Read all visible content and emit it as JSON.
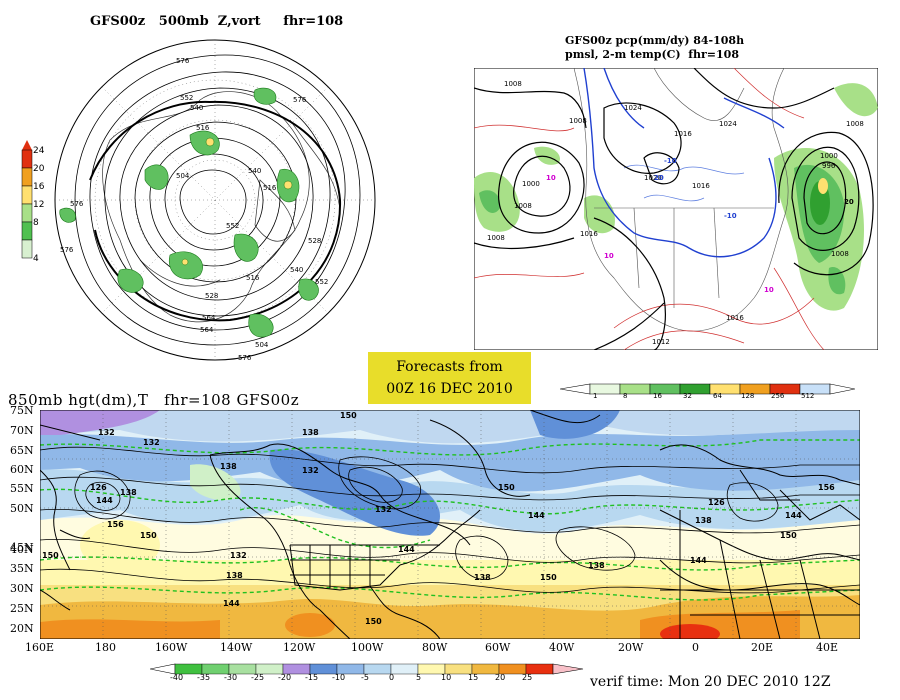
{
  "polar_panel": {
    "title": "GFS00z   500mb  Z,vort     fhr=108",
    "legend_ticks": [
      "24",
      "20",
      "16",
      "12",
      "8",
      "4"
    ],
    "legend_colors": [
      "#e03010",
      "#f0a020",
      "#ffe070",
      "#a8e088",
      "#50c050",
      "#d8f0d0"
    ],
    "contour_labels": [
      "576",
      "576",
      "552",
      "540",
      "516",
      "504",
      "576",
      "528",
      "540",
      "516",
      "552",
      "540",
      "564",
      "576",
      "528",
      "504",
      "576",
      "516",
      "552",
      "564"
    ]
  },
  "precip_panel": {
    "title_line1": "GFS00z pcp(mm/dy) 84-108h",
    "title_line2": "pmsl, 2-m temp(C)  fhr=108",
    "isobar_labels": [
      "1008",
      "1008",
      "1024",
      "1008",
      "1000",
      "1016",
      "1024",
      "1016",
      "1008",
      "1000",
      "1008",
      "1016",
      "1016",
      "1012",
      "1008",
      "996",
      "1020"
    ],
    "temp_labels": [
      "10",
      "10",
      "-10",
      "-10",
      "20",
      "10",
      "20"
    ],
    "legend_ticks": [
      "1",
      "8",
      "16",
      "32",
      "64",
      "128",
      "256",
      "512"
    ],
    "legend_colors": [
      "#e8f8e0",
      "#a8e088",
      "#60c060",
      "#30a030",
      "#ffe070",
      "#f0a020",
      "#e03010",
      "#c8e0f8"
    ]
  },
  "forecast_box": {
    "line1": "Forecasts from",
    "line2": "00Z 16 DEC 2010"
  },
  "hgt_panel": {
    "title": "850mb hgt(dm),T   fhr=108 GFS00z",
    "lat_labels": [
      "75N",
      "70N",
      "65N",
      "60N",
      "55N",
      "50N",
      "45N",
      "40N",
      "35N",
      "30N",
      "25N",
      "20N"
    ],
    "lon_labels": [
      "160E",
      "180",
      "160W",
      "140W",
      "120W",
      "100W",
      "80W",
      "60W",
      "40W",
      "20W",
      "0",
      "20E",
      "40E"
    ],
    "height_labels": [
      "132",
      "132",
      "138",
      "126",
      "144",
      "138",
      "156",
      "150",
      "132",
      "138",
      "132",
      "144",
      "138",
      "150",
      "144",
      "144",
      "138",
      "150",
      "150",
      "132",
      "126",
      "156",
      "138",
      "144",
      "150",
      "150",
      "138",
      "150",
      "144"
    ],
    "legend_ticks": [
      "-40",
      "-35",
      "-30",
      "-25",
      "-20",
      "-15",
      "-10",
      "-5",
      "0",
      "5",
      "10",
      "15",
      "20",
      "25"
    ],
    "legend_colors": [
      "#40c040",
      "#70d070",
      "#a8e0a0",
      "#d0f0c8",
      "#b090e0",
      "#6090d8",
      "#90b8e8",
      "#b8d8f0",
      "#e0f0f8",
      "#fff8b0",
      "#f8e080",
      "#f0b840",
      "#f09020",
      "#e83010"
    ],
    "verif_time": "verif time: Mon 20 DEC 2010 12Z"
  }
}
